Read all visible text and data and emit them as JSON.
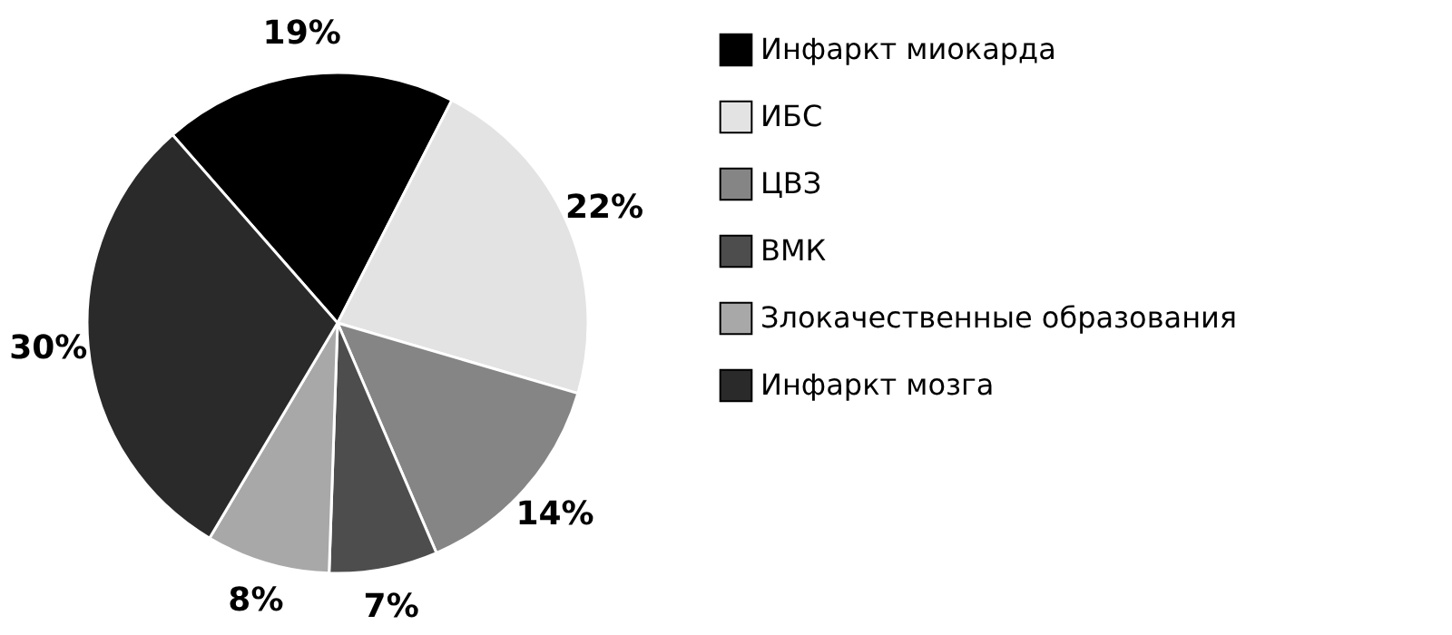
{
  "chart_data": {
    "type": "pie",
    "categories": [
      "Инфаркт миокарда",
      "ИБС",
      "ЦВЗ",
      "ВМК",
      "Злокачественные образования",
      "Инфаркт мозга"
    ],
    "values": [
      19,
      22,
      14,
      7,
      8,
      30
    ],
    "colors": [
      "#000000",
      "#e3e3e3",
      "#858585",
      "#4d4d4d",
      "#a8a8a8",
      "#2a2a2a"
    ],
    "value_labels": [
      "19%",
      "22%",
      "14%",
      "7%",
      "8%",
      "30%"
    ],
    "legend": "right"
  }
}
